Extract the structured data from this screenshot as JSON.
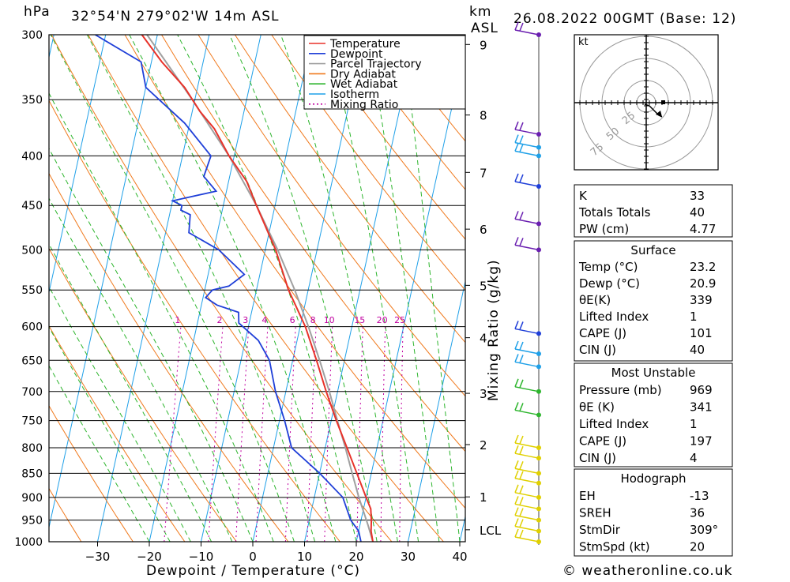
{
  "header": {
    "pressure_unit": "hPa",
    "location": "32°54'N 279°02'W 14m ASL",
    "km_label": "km",
    "asl_label": "ASL",
    "datetime": "26.08.2022 00GMT (Base: 12)"
  },
  "footer": {
    "copyright": "© weatheronline.co.uk"
  },
  "chart_data": {
    "type": "line",
    "xlabel": "Dewpoint / Temperature (°C)",
    "ylabel_right": "Mixing Ratio (g/kg)",
    "x_ticks": [
      -30,
      -20,
      -10,
      0,
      10,
      20,
      30,
      40
    ],
    "p_levels": [
      300,
      350,
      400,
      450,
      500,
      550,
      600,
      650,
      700,
      750,
      800,
      850,
      900,
      950,
      1000
    ],
    "km_ticks": [
      "9",
      "8",
      "7",
      "6",
      "5",
      "4",
      "3",
      "2",
      "1",
      "LCL"
    ],
    "mixing_ratio_labels": [
      "1",
      "2",
      "3",
      "4",
      "6",
      "8",
      "10",
      "15",
      "20",
      "25"
    ],
    "legend": [
      "Temperature",
      "Dewpoint",
      "Parcel Trajectory",
      "Dry Adiabat",
      "Wet Adiabat",
      "Isotherm",
      "Mixing Ratio"
    ],
    "colors": {
      "temperature": "#e8322a",
      "dewpoint": "#1f3fd8",
      "parcel": "#a0a0a0",
      "dry_adiabat": "#f07a1e",
      "wet_adiabat": "#2db52d",
      "isotherm": "#1fa0e8",
      "mixing_ratio": "#c000a0"
    },
    "series": [
      {
        "name": "Temperature",
        "points": [
          {
            "p": 1000,
            "t": 23.2
          },
          {
            "p": 975,
            "t": 22.4
          },
          {
            "p": 950,
            "t": 22.0
          },
          {
            "p": 925,
            "t": 21.4
          },
          {
            "p": 900,
            "t": 20.0
          },
          {
            "p": 850,
            "t": 17.2
          },
          {
            "p": 800,
            "t": 14.2
          },
          {
            "p": 750,
            "t": 11.0
          },
          {
            "p": 700,
            "t": 7.8
          },
          {
            "p": 650,
            "t": 4.6
          },
          {
            "p": 600,
            "t": 1.0
          },
          {
            "p": 550,
            "t": -3.8
          },
          {
            "p": 500,
            "t": -8.0
          },
          {
            "p": 450,
            "t": -13.6
          },
          {
            "p": 425,
            "t": -16.5
          },
          {
            "p": 400,
            "t": -21.0
          },
          {
            "p": 375,
            "t": -25.0
          },
          {
            "p": 360,
            "t": -28.5
          },
          {
            "p": 340,
            "t": -32.5
          },
          {
            "p": 320,
            "t": -38.0
          },
          {
            "p": 300,
            "t": -43.0
          }
        ]
      },
      {
        "name": "Dewpoint",
        "points": [
          {
            "p": 1000,
            "t": 20.9
          },
          {
            "p": 975,
            "t": 20.0
          },
          {
            "p": 950,
            "t": 18.0
          },
          {
            "p": 900,
            "t": 15.5
          },
          {
            "p": 850,
            "t": 10.0
          },
          {
            "p": 800,
            "t": 3.5
          },
          {
            "p": 750,
            "t": 1.0
          },
          {
            "p": 700,
            "t": -2.0
          },
          {
            "p": 650,
            "t": -4.5
          },
          {
            "p": 620,
            "t": -7.5
          },
          {
            "p": 595,
            "t": -12.0
          },
          {
            "p": 580,
            "t": -12.5
          },
          {
            "p": 570,
            "t": -17.0
          },
          {
            "p": 560,
            "t": -19.5
          },
          {
            "p": 550,
            "t": -18.5
          },
          {
            "p": 545,
            "t": -15.5
          },
          {
            "p": 530,
            "t": -13.0
          },
          {
            "p": 500,
            "t": -19.0
          },
          {
            "p": 480,
            "t": -25.5
          },
          {
            "p": 460,
            "t": -26.0
          },
          {
            "p": 455,
            "t": -28.0
          },
          {
            "p": 450,
            "t": -28.0
          },
          {
            "p": 445,
            "t": -30.0
          },
          {
            "p": 435,
            "t": -22.0
          },
          {
            "p": 420,
            "t": -25.0
          },
          {
            "p": 400,
            "t": -24.5
          },
          {
            "p": 370,
            "t": -31.0
          },
          {
            "p": 340,
            "t": -40.0
          },
          {
            "p": 320,
            "t": -42.0
          },
          {
            "p": 300,
            "t": -52.0
          }
        ]
      },
      {
        "name": "Parcel Trajectory",
        "points": [
          {
            "p": 1000,
            "t": 23.2
          },
          {
            "p": 960,
            "t": 21.5
          },
          {
            "p": 900,
            "t": 18.6
          },
          {
            "p": 850,
            "t": 16.3
          },
          {
            "p": 800,
            "t": 13.9
          },
          {
            "p": 750,
            "t": 11.2
          },
          {
            "p": 700,
            "t": 8.4
          },
          {
            "p": 650,
            "t": 5.2
          },
          {
            "p": 600,
            "t": 1.6
          },
          {
            "p": 550,
            "t": -2.6
          },
          {
            "p": 500,
            "t": -7.6
          },
          {
            "p": 450,
            "t": -13.6
          },
          {
            "p": 400,
            "t": -21.0
          },
          {
            "p": 350,
            "t": -30.5
          },
          {
            "p": 300,
            "t": -42.0
          }
        ]
      }
    ],
    "wind_barbs": [
      {
        "p": 300,
        "color": "#6a1fb0"
      },
      {
        "p": 380,
        "color": "#6a1fb0"
      },
      {
        "p": 392,
        "color": "#1fa0e8"
      },
      {
        "p": 400,
        "color": "#1fa0e8"
      },
      {
        "p": 430,
        "color": "#1f3fd8"
      },
      {
        "p": 470,
        "color": "#6a1fb0"
      },
      {
        "p": 500,
        "color": "#6a1fb0"
      },
      {
        "p": 610,
        "color": "#1f3fd8"
      },
      {
        "p": 640,
        "color": "#1fa0e8"
      },
      {
        "p": 660,
        "color": "#1fa0e8"
      },
      {
        "p": 700,
        "color": "#2db52d"
      },
      {
        "p": 740,
        "color": "#2db52d"
      },
      {
        "p": 800,
        "color": "#e0d000"
      },
      {
        "p": 820,
        "color": "#e0d000"
      },
      {
        "p": 850,
        "color": "#e0d000"
      },
      {
        "p": 870,
        "color": "#e0d000"
      },
      {
        "p": 900,
        "color": "#e0d000"
      },
      {
        "p": 925,
        "color": "#e0d000"
      },
      {
        "p": 950,
        "color": "#e0d000"
      },
      {
        "p": 975,
        "color": "#e0d000"
      },
      {
        "p": 1000,
        "color": "#e0d000"
      }
    ]
  },
  "hodograph": {
    "unit": "kt",
    "ring_labels": [
      "25",
      "50",
      "75"
    ]
  },
  "indices": [
    {
      "label": "K",
      "value": "33"
    },
    {
      "label": "Totals Totals",
      "value": "40"
    },
    {
      "label": "PW (cm)",
      "value": "4.77"
    }
  ],
  "surface": {
    "title": "Surface",
    "rows": [
      {
        "label": "Temp (°C)",
        "value": "23.2"
      },
      {
        "label": "Dewp (°C)",
        "value": "20.9"
      },
      {
        "label": "θE(K)",
        "value": "339"
      },
      {
        "label": "Lifted Index",
        "value": "1"
      },
      {
        "label": "CAPE (J)",
        "value": "101"
      },
      {
        "label": "CIN (J)",
        "value": "40"
      }
    ]
  },
  "most_unstable": {
    "title": "Most Unstable",
    "rows": [
      {
        "label": "Pressure (mb)",
        "value": "969"
      },
      {
        "label": "θE (K)",
        "value": "341"
      },
      {
        "label": "Lifted Index",
        "value": "1"
      },
      {
        "label": "CAPE (J)",
        "value": "197"
      },
      {
        "label": "CIN (J)",
        "value": "4"
      }
    ]
  },
  "hodograph_table": {
    "title": "Hodograph",
    "rows": [
      {
        "label": "EH",
        "value": "-13"
      },
      {
        "label": "SREH",
        "value": "36"
      },
      {
        "label": "StmDir",
        "value": "309°"
      },
      {
        "label": "StmSpd (kt)",
        "value": "20"
      }
    ]
  }
}
